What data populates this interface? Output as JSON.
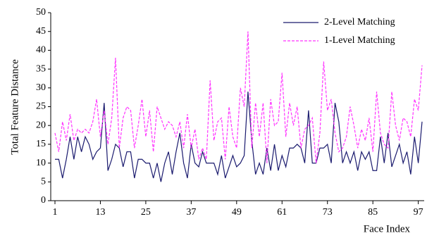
{
  "chart_data": {
    "type": "line",
    "y_label": "Total Feature Distance",
    "x_label": "Face Index",
    "x": [
      1,
      2,
      3,
      4,
      5,
      6,
      7,
      8,
      9,
      10,
      11,
      12,
      13,
      14,
      15,
      16,
      17,
      18,
      19,
      20,
      21,
      22,
      23,
      24,
      25,
      26,
      27,
      28,
      29,
      30,
      31,
      32,
      33,
      34,
      35,
      36,
      37,
      38,
      39,
      40,
      41,
      42,
      43,
      44,
      45,
      46,
      47,
      48,
      49,
      50,
      51,
      52,
      53,
      54,
      55,
      56,
      57,
      58,
      59,
      60,
      61,
      62,
      63,
      64,
      65,
      66,
      67,
      68,
      69,
      70,
      71,
      72,
      73,
      74,
      75,
      76,
      77,
      78,
      79,
      80,
      81,
      82,
      83,
      84,
      85,
      86,
      87,
      88,
      89,
      90,
      91,
      92,
      93,
      94,
      95,
      96,
      97,
      98
    ],
    "series": [
      {
        "name": "2-Level Matching",
        "color": "#1a1a6e",
        "line_style": "solid",
        "values": [
          11,
          11,
          6,
          11,
          17,
          11,
          17,
          13,
          17,
          15,
          11,
          13,
          14,
          26,
          8,
          11,
          15,
          14,
          9,
          13,
          13,
          6,
          11,
          11,
          10,
          10,
          6,
          10,
          5,
          10,
          13,
          7,
          13,
          18,
          10,
          6,
          15,
          10,
          9,
          13,
          10,
          10,
          10,
          7,
          12,
          6,
          9,
          12,
          9,
          10,
          12,
          29,
          16,
          7,
          10,
          7,
          14,
          8,
          15,
          8,
          12,
          9,
          14,
          14,
          15,
          14,
          10,
          24,
          10,
          10,
          14,
          14,
          15,
          10,
          26,
          21,
          10,
          13,
          10,
          13,
          8,
          13,
          11,
          13,
          8,
          8,
          17,
          10,
          18,
          9,
          12,
          15,
          10,
          13,
          7,
          17,
          10,
          21
        ]
      },
      {
        "name": "1-Level Matching",
        "color": "#ff33ff",
        "line_style": "dashed",
        "values": [
          18,
          13,
          21,
          16,
          23,
          16,
          19,
          18,
          19,
          18,
          21,
          27,
          17,
          24,
          15,
          22,
          38,
          14,
          22,
          25,
          24,
          14,
          20,
          27,
          17,
          24,
          13,
          25,
          22,
          19,
          21,
          20,
          17,
          21,
          14,
          23,
          14,
          19,
          11,
          14,
          11,
          32,
          16,
          21,
          22,
          11,
          25,
          17,
          14,
          30,
          25,
          45,
          14,
          26,
          17,
          26,
          10,
          27,
          20,
          21,
          34,
          17,
          26,
          20,
          25,
          14,
          19,
          20,
          22,
          10,
          18,
          37,
          24,
          27,
          18,
          13,
          14,
          17,
          25,
          20,
          14,
          19,
          16,
          22,
          13,
          29,
          18,
          15,
          14,
          29,
          20,
          16,
          22,
          21,
          17,
          27,
          24,
          36
        ]
      }
    ],
    "xlim": [
      1,
      98
    ],
    "xticks": [
      1,
      13,
      25,
      37,
      49,
      61,
      73,
      85,
      97
    ],
    "ylim": [
      0,
      50
    ],
    "yticks": [
      0,
      5,
      10,
      15,
      20,
      25,
      30,
      35,
      40,
      45,
      50
    ],
    "legend": "top-right"
  }
}
